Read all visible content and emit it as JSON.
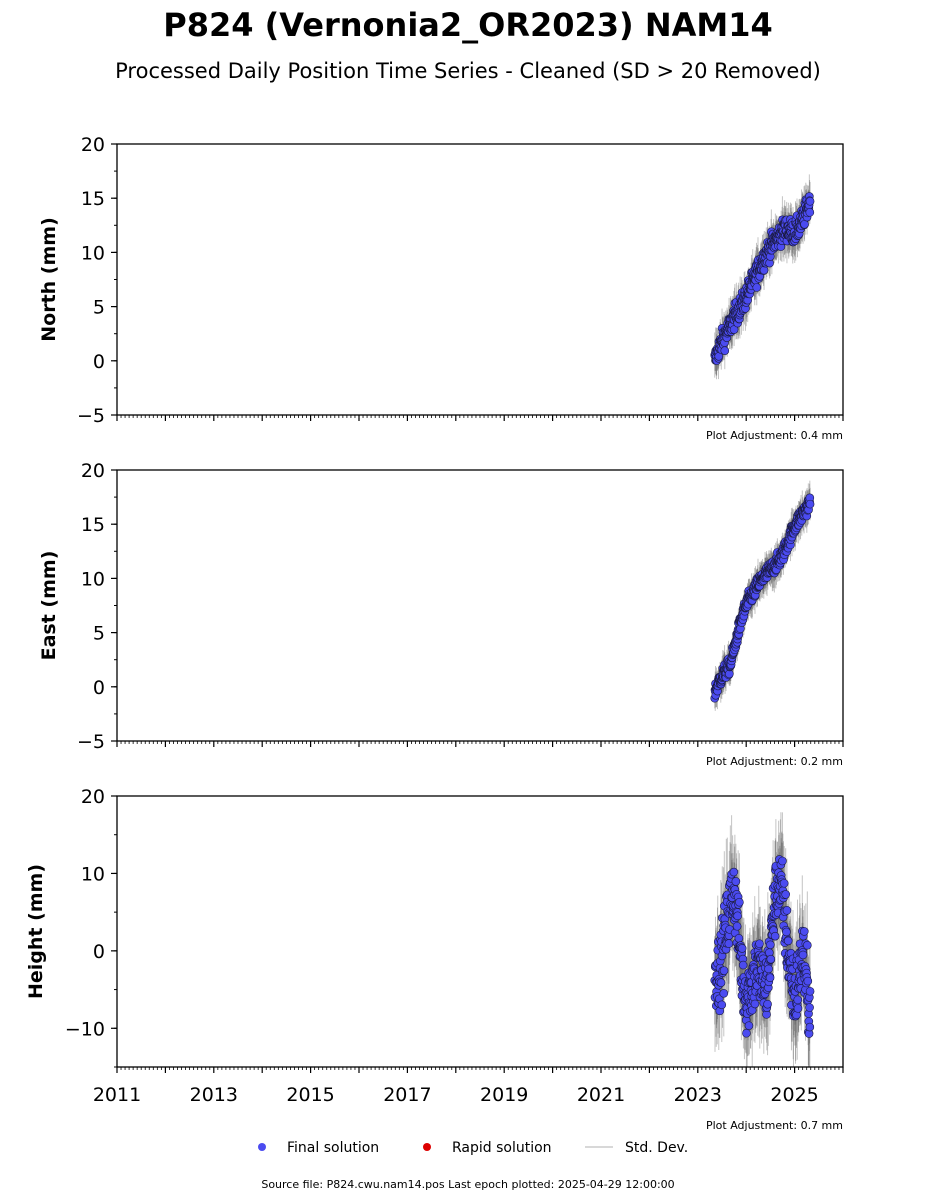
{
  "header": {
    "title": "P824 (Vernonia2_OR2023) NAM14",
    "subtitle": "Processed Daily Position Time Series - Cleaned (SD > 20 Removed)"
  },
  "legend": {
    "final": "Final solution",
    "rapid": "Rapid solution",
    "std": "Std. Dev."
  },
  "footer": {
    "source": "Source file: P824.cwu.nam14.pos  Last epoch plotted: 2025-04-29 12:00:00"
  },
  "colors": {
    "final": "#4b4bf0",
    "rapid": "#dd0000",
    "std": "#cccccc",
    "errorbar": "#555555"
  },
  "chart_data": [
    {
      "type": "scatter",
      "ylabel": "North (mm)",
      "adjustment": "Plot Adjustment: 0.4 mm",
      "xlim": [
        2011,
        2026
      ],
      "ylim": [
        -5,
        20
      ],
      "yticks": [
        -5,
        0,
        5,
        10,
        15,
        20
      ],
      "ytick_labels": [
        "−5",
        "0",
        "5",
        "10",
        "15",
        "20"
      ],
      "show_xlabels": false,
      "series": [
        {
          "name": "Final solution",
          "x": [
            2023.35,
            2023.42,
            2023.5,
            2023.58,
            2023.67,
            2023.75,
            2023.83,
            2023.92,
            2024.0,
            2024.08,
            2024.17,
            2024.25,
            2024.33,
            2024.42,
            2024.5,
            2024.58,
            2024.67,
            2024.75,
            2024.83,
            2024.92,
            2025.0,
            2025.08,
            2025.17,
            2025.25,
            2025.32
          ],
          "y": [
            0.0,
            1.0,
            1.8,
            2.5,
            3.2,
            4.0,
            4.6,
            5.2,
            6.0,
            6.8,
            7.6,
            8.4,
            9.2,
            9.9,
            10.5,
            11.0,
            11.5,
            11.9,
            12.2,
            12.0,
            11.8,
            12.3,
            13.0,
            14.0,
            14.8
          ],
          "spread": 1.0,
          "err": 1.6
        }
      ]
    },
    {
      "type": "scatter",
      "ylabel": "East (mm)",
      "adjustment": "Plot Adjustment: 0.2 mm",
      "xlim": [
        2011,
        2026
      ],
      "ylim": [
        -5,
        20
      ],
      "yticks": [
        -5,
        0,
        5,
        10,
        15,
        20
      ],
      "ytick_labels": [
        "−5",
        "0",
        "5",
        "10",
        "15",
        "20"
      ],
      "show_xlabels": false,
      "series": [
        {
          "name": "Final solution",
          "x": [
            2023.35,
            2023.42,
            2023.5,
            2023.58,
            2023.67,
            2023.75,
            2023.83,
            2023.92,
            2024.0,
            2024.08,
            2024.17,
            2024.25,
            2024.33,
            2024.42,
            2024.5,
            2024.58,
            2024.67,
            2024.75,
            2024.83,
            2024.92,
            2025.0,
            2025.08,
            2025.17,
            2025.25,
            2025.32
          ],
          "y": [
            -0.5,
            0.3,
            1.0,
            1.5,
            2.0,
            3.5,
            5.0,
            6.5,
            7.5,
            8.2,
            8.8,
            9.5,
            10.0,
            10.4,
            10.8,
            11.2,
            11.6,
            12.2,
            13.0,
            14.0,
            14.8,
            15.4,
            16.0,
            16.5,
            17.0
          ],
          "spread": 0.7,
          "err": 1.3
        }
      ]
    },
    {
      "type": "scatter",
      "ylabel": "Height (mm)",
      "adjustment": "Plot Adjustment: 0.7 mm",
      "xlim": [
        2011,
        2026
      ],
      "ylim": [
        -15,
        20
      ],
      "yticks": [
        -10,
        0,
        10,
        20
      ],
      "ytick_labels": [
        "−10",
        "0",
        "10",
        "20"
      ],
      "show_xlabels": true,
      "xticks": [
        2011,
        2013,
        2015,
        2017,
        2019,
        2021,
        2023,
        2025
      ],
      "xtick_labels": [
        "2011",
        "2013",
        "2015",
        "2017",
        "2019",
        "2021",
        "2023",
        "2025"
      ],
      "series": [
        {
          "name": "Final solution",
          "x": [
            2023.35,
            2023.42,
            2023.5,
            2023.58,
            2023.67,
            2023.75,
            2023.83,
            2023.92,
            2024.0,
            2024.08,
            2024.17,
            2024.25,
            2024.33,
            2024.42,
            2024.5,
            2024.58,
            2024.67,
            2024.75,
            2024.83,
            2024.92,
            2025.0,
            2025.08,
            2025.17,
            2025.25,
            2025.32
          ],
          "y": [
            -2.0,
            -3.0,
            -1.0,
            2.0,
            6.0,
            8.0,
            3.0,
            -3.0,
            -6.0,
            -5.0,
            -3.0,
            -2.0,
            -4.0,
            -5.0,
            0.0,
            6.0,
            9.0,
            7.0,
            2.0,
            -3.0,
            -6.0,
            -4.0,
            0.0,
            -5.0,
            -7.0
          ],
          "spread": 4.5,
          "err": 5.5
        }
      ]
    }
  ]
}
